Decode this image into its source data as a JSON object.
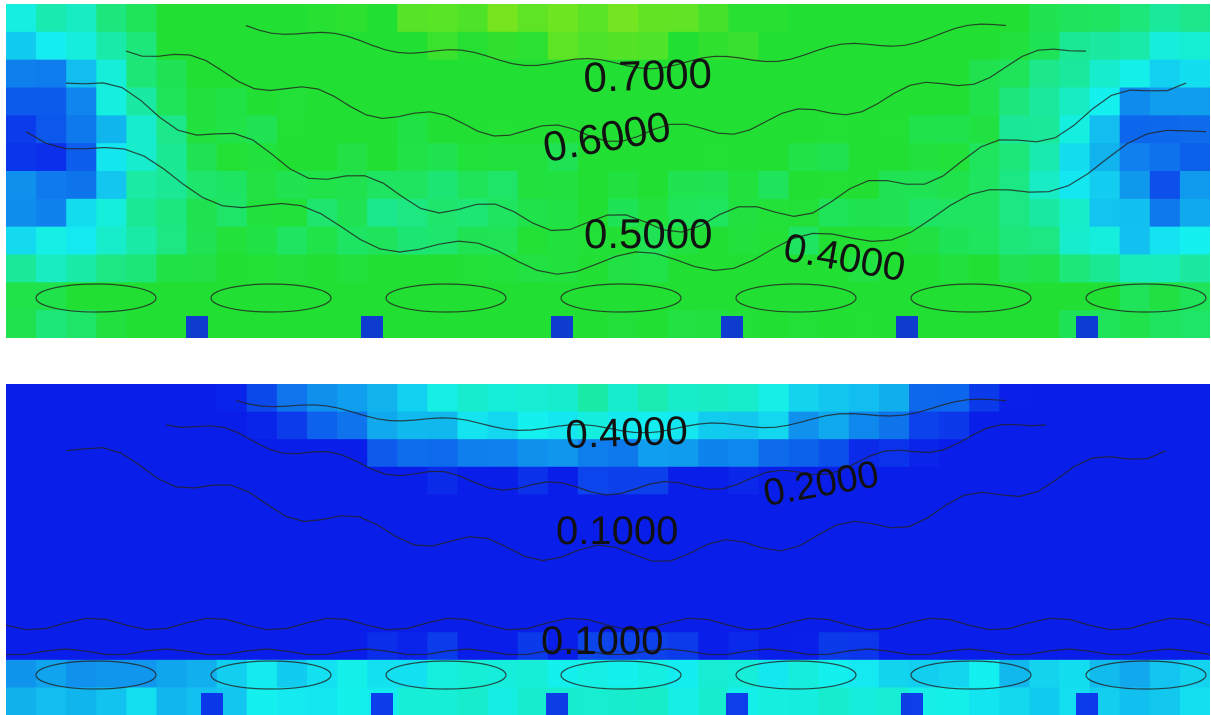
{
  "chart_data": [
    {
      "type": "heatmap",
      "contour_levels": [
        0.4,
        0.5,
        0.6,
        0.7
      ],
      "contour_labels": [
        {
          "text": "0.7000",
          "level": 0.7
        },
        {
          "text": "0.6000",
          "level": 0.6
        },
        {
          "text": "0.5000",
          "level": 0.5
        },
        {
          "text": "0.4000",
          "level": 0.4
        }
      ],
      "colors": {
        "low": "#0a1eea",
        "mid": "#14f0f0",
        "green": "#22e033",
        "high": "#ffee00"
      }
    },
    {
      "type": "heatmap",
      "contour_levels": [
        0.1,
        0.2,
        0.4
      ],
      "contour_labels": [
        {
          "text": "0.4000",
          "level": 0.4
        },
        {
          "text": "0.2000",
          "level": 0.2
        },
        {
          "text": "0.1000",
          "level": 0.1
        },
        {
          "text": "0.1000",
          "level": 0.1
        }
      ],
      "colors": {
        "low": "#0a1eea",
        "mid": "#14f0f0",
        "green": "#22e033",
        "high": "#ffee00"
      }
    }
  ]
}
